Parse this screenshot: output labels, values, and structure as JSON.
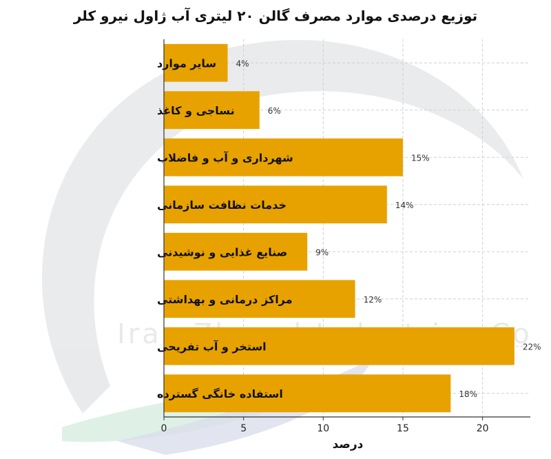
{
  "watermark": {
    "text": "Iran Zhavel Industries Co"
  },
  "colors": {
    "bar": "#E8A200",
    "axis": "#333333",
    "grid": "#cfcfcf"
  },
  "chart_data": {
    "type": "bar",
    "orientation": "horizontal",
    "title": "توزیع درصدی موارد مصرف گالن ۲۰ لیتری آب ژاول نیرو کلر",
    "xlabel": "درصد",
    "ylabel": "",
    "categories": [
      "سایر موارد",
      "نساجی و کاغذ",
      "شهرداری و آب و فاضلاب",
      "خدمات نظافت سازمانی",
      "صنایع غذایی و نوشیدنی",
      "مراکز درمانی و بهداشتی",
      "استخر و آب تفریحی",
      "استفاده خانگی گسترده"
    ],
    "values": [
      4,
      6,
      15,
      14,
      9,
      12,
      22,
      18
    ],
    "value_labels": [
      "4%",
      "6%",
      "15%",
      "14%",
      "9%",
      "12%",
      "22%",
      "18%"
    ],
    "xlim": [
      0,
      23
    ],
    "xticks": [
      0,
      5,
      10,
      15,
      20
    ],
    "xtick_labels": [
      "0",
      "5",
      "10",
      "15",
      "20"
    ],
    "grid": true
  }
}
